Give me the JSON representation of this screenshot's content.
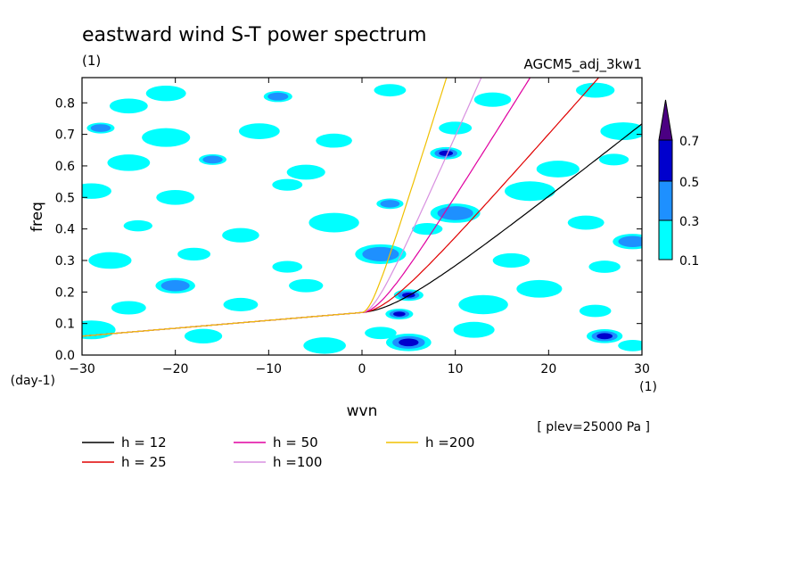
{
  "chart_data": {
    "type": "heatmap",
    "title": "eastward wind S-T power spectrum",
    "subtitle_left": "(1)",
    "subtitle_right": "AGCM5_adj_3kw1",
    "xlabel": "wvn",
    "ylabel": "freq",
    "x_unit": "(1)",
    "y_unit": "(day-1)",
    "xlim": [
      -30,
      30
    ],
    "ylim": [
      0,
      0.88
    ],
    "xticks": [
      -30,
      -20,
      -10,
      0,
      10,
      20,
      30
    ],
    "yticks": [
      0.0,
      0.1,
      0.2,
      0.3,
      0.4,
      0.5,
      0.6,
      0.7,
      0.8
    ],
    "annotation": "[ plev=25000 Pa ]",
    "colorbar": {
      "levels": [
        0.1,
        0.3,
        0.5,
        0.7
      ],
      "colors": [
        "#00ffff",
        "#1e90ff",
        "#0000cd",
        "#4b0082"
      ]
    },
    "contour_blobs": [
      {
        "x": -25,
        "y": 0.79,
        "level": 1
      },
      {
        "x": -21,
        "y": 0.83,
        "level": 1
      },
      {
        "x": -9,
        "y": 0.82,
        "level": 2
      },
      {
        "x": 3,
        "y": 0.84,
        "level": 1
      },
      {
        "x": 14,
        "y": 0.81,
        "level": 1
      },
      {
        "x": 25,
        "y": 0.84,
        "level": 1
      },
      {
        "x": -28,
        "y": 0.72,
        "level": 2
      },
      {
        "x": -21,
        "y": 0.69,
        "level": 1
      },
      {
        "x": -11,
        "y": 0.71,
        "level": 1
      },
      {
        "x": -3,
        "y": 0.68,
        "level": 1
      },
      {
        "x": 10,
        "y": 0.72,
        "level": 1
      },
      {
        "x": 28,
        "y": 0.71,
        "level": 1
      },
      {
        "x": -25,
        "y": 0.61,
        "level": 1
      },
      {
        "x": -16,
        "y": 0.62,
        "level": 2
      },
      {
        "x": -6,
        "y": 0.58,
        "level": 1
      },
      {
        "x": 9,
        "y": 0.64,
        "level": 3
      },
      {
        "x": 21,
        "y": 0.59,
        "level": 1
      },
      {
        "x": 27,
        "y": 0.62,
        "level": 1
      },
      {
        "x": -29,
        "y": 0.52,
        "level": 1
      },
      {
        "x": -20,
        "y": 0.5,
        "level": 1
      },
      {
        "x": -8,
        "y": 0.54,
        "level": 1
      },
      {
        "x": 3,
        "y": 0.48,
        "level": 2
      },
      {
        "x": 10,
        "y": 0.45,
        "level": 2
      },
      {
        "x": 18,
        "y": 0.52,
        "level": 1
      },
      {
        "x": -24,
        "y": 0.41,
        "level": 1
      },
      {
        "x": -13,
        "y": 0.38,
        "level": 1
      },
      {
        "x": -3,
        "y": 0.42,
        "level": 1
      },
      {
        "x": 7,
        "y": 0.4,
        "level": 1
      },
      {
        "x": 24,
        "y": 0.42,
        "level": 1
      },
      {
        "x": 29,
        "y": 0.36,
        "level": 2
      },
      {
        "x": -27,
        "y": 0.3,
        "level": 1
      },
      {
        "x": -18,
        "y": 0.32,
        "level": 1
      },
      {
        "x": -8,
        "y": 0.28,
        "level": 1
      },
      {
        "x": 2,
        "y": 0.32,
        "level": 2
      },
      {
        "x": 16,
        "y": 0.3,
        "level": 1
      },
      {
        "x": 26,
        "y": 0.28,
        "level": 1
      },
      {
        "x": -20,
        "y": 0.22,
        "level": 2
      },
      {
        "x": -6,
        "y": 0.22,
        "level": 1
      },
      {
        "x": 5,
        "y": 0.19,
        "level": 3
      },
      {
        "x": 19,
        "y": 0.21,
        "level": 1
      },
      {
        "x": -25,
        "y": 0.15,
        "level": 1
      },
      {
        "x": -13,
        "y": 0.16,
        "level": 1
      },
      {
        "x": 4,
        "y": 0.13,
        "level": 3
      },
      {
        "x": 13,
        "y": 0.16,
        "level": 1
      },
      {
        "x": 25,
        "y": 0.14,
        "level": 1
      },
      {
        "x": -29,
        "y": 0.08,
        "level": 1
      },
      {
        "x": -17,
        "y": 0.06,
        "level": 1
      },
      {
        "x": 2,
        "y": 0.07,
        "level": 1
      },
      {
        "x": 12,
        "y": 0.08,
        "level": 1
      },
      {
        "x": 26,
        "y": 0.06,
        "level": 3
      },
      {
        "x": 5,
        "y": 0.04,
        "level": 3
      },
      {
        "x": -4,
        "y": 0.03,
        "level": 1
      },
      {
        "x": 29,
        "y": 0.03,
        "level": 1
      }
    ],
    "series": [
      {
        "name": "h = 12",
        "h": 12,
        "color": "#000000"
      },
      {
        "name": "h = 25",
        "h": 25,
        "color": "#e00000"
      },
      {
        "name": "h = 50",
        "h": 50,
        "color": "#e000a0"
      },
      {
        "name": "h =100",
        "h": 100,
        "color": "#d890e0"
      },
      {
        "name": "h =200",
        "h": 200,
        "color": "#f0c000"
      }
    ]
  }
}
